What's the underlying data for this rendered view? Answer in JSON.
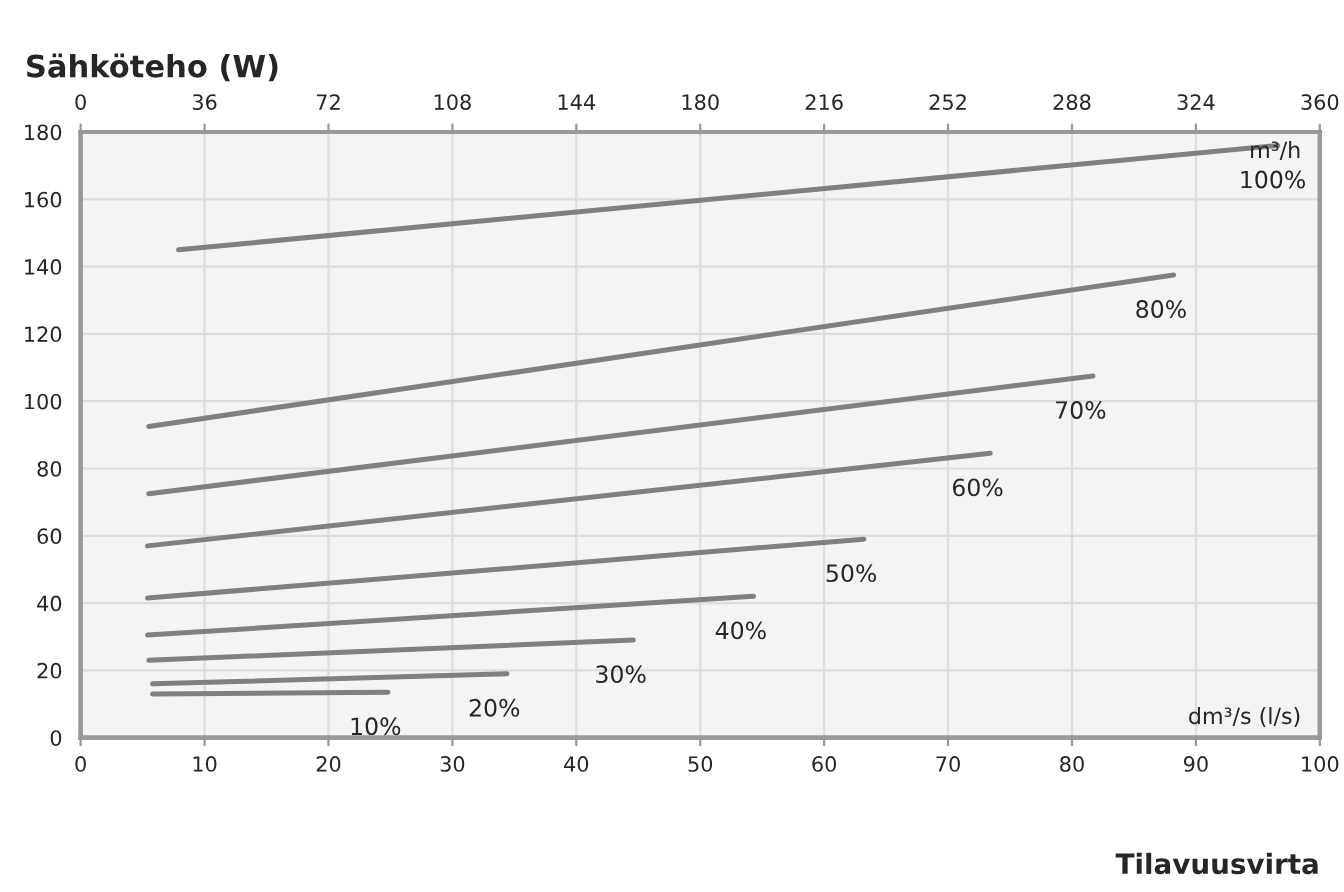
{
  "chart_data": {
    "type": "line",
    "ylabel": "Sähköteho (W)",
    "xlabel": "Tilavuusvirta",
    "xlim": [
      0,
      100
    ],
    "xticks": [
      0,
      10,
      20,
      30,
      40,
      50,
      60,
      70,
      80,
      90,
      100
    ],
    "ylim": [
      0,
      180
    ],
    "yticks": [
      0,
      20,
      40,
      60,
      80,
      100,
      120,
      140,
      160,
      180
    ],
    "x2lim": [
      0,
      360
    ],
    "x2ticks": [
      0,
      36,
      72,
      108,
      144,
      180,
      216,
      252,
      288,
      324,
      360
    ],
    "grid": true,
    "marker": "none",
    "line_style": "solid",
    "annotations": [
      "m³/h",
      "dm³/s (l/s)"
    ],
    "series": [
      {
        "name": "100%",
        "color": "#808080",
        "x": [
          7.9,
          96.6
        ],
        "values": [
          145,
          176
        ]
      },
      {
        "name": "80%",
        "color": "#808080",
        "x": [
          5.5,
          88.2
        ],
        "values": [
          92.5,
          137.5
        ]
      },
      {
        "name": "70%",
        "color": "#808080",
        "x": [
          5.5,
          81.7
        ],
        "values": [
          72.5,
          107.5
        ]
      },
      {
        "name": "60%",
        "color": "#808080",
        "x": [
          5.4,
          73.4
        ],
        "values": [
          57,
          84.5
        ]
      },
      {
        "name": "50%",
        "color": "#808080",
        "x": [
          5.4,
          63.2
        ],
        "values": [
          41.5,
          59
        ]
      },
      {
        "name": "40%",
        "color": "#808080",
        "x": [
          5.4,
          54.3
        ],
        "values": [
          30.5,
          42
        ]
      },
      {
        "name": "30%",
        "color": "#808080",
        "x": [
          5.5,
          44.6
        ],
        "values": [
          23,
          29
        ]
      },
      {
        "name": "20%",
        "color": "#808080",
        "x": [
          5.8,
          34.4
        ],
        "values": [
          16,
          19
        ]
      },
      {
        "name": "10%",
        "color": "#808080",
        "x": [
          5.8,
          24.8
        ],
        "values": [
          13,
          13.5
        ]
      }
    ]
  }
}
